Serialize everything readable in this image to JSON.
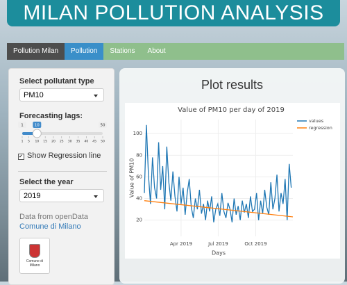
{
  "header": {
    "title": "MILAN POLLUTION ANALYSIS"
  },
  "nav": {
    "brand": "Pollution Milan",
    "items": [
      "Pollution",
      "Stations",
      "About"
    ],
    "active": 0
  },
  "sidebar": {
    "pollutant_label": "Select pollutant type",
    "pollutant": "PM10",
    "lags_label": "Forecasting lags:",
    "slider": {
      "min": 1,
      "max": 50,
      "value": 10,
      "ticks": [
        1,
        5,
        10,
        15,
        20,
        25,
        30,
        35,
        40,
        45,
        50
      ]
    },
    "checkbox": "Show Regression line",
    "year_label": "Select the year",
    "year": "2019",
    "source": "Data from openData",
    "link": "Comune di Milano",
    "logo_text": "Comune di Milano"
  },
  "panel": {
    "heading": "Plot results"
  },
  "chart_data": {
    "type": "line",
    "title": "Value of  PM10 per day of  2019",
    "xlabel": "Days",
    "ylabel": "Value of  PM10",
    "xlim": [
      1,
      365
    ],
    "ylim": [
      5,
      113
    ],
    "xticks": [
      {
        "value": 91,
        "label": "Apr 2019"
      },
      {
        "value": 182,
        "label": "Jul 2019"
      },
      {
        "value": 274,
        "label": "Oct 2019"
      }
    ],
    "yticks": [
      20,
      40,
      60,
      80,
      100
    ],
    "grid": true,
    "legend": "top-right",
    "series": [
      {
        "name": "values",
        "color": "#1f77b4",
        "x": [
          1,
          6,
          11,
          16,
          21,
          26,
          31,
          36,
          41,
          46,
          51,
          56,
          61,
          66,
          71,
          76,
          81,
          86,
          91,
          96,
          101,
          106,
          111,
          116,
          121,
          126,
          131,
          136,
          141,
          146,
          151,
          156,
          161,
          166,
          171,
          176,
          181,
          186,
          191,
          196,
          201,
          206,
          211,
          216,
          221,
          226,
          231,
          236,
          241,
          246,
          251,
          256,
          261,
          266,
          271,
          276,
          281,
          286,
          291,
          296,
          301,
          306,
          311,
          316,
          321,
          326,
          331,
          336,
          341,
          346,
          351,
          356,
          361
        ],
        "values": [
          45,
          108,
          62,
          35,
          78,
          50,
          40,
          92,
          48,
          70,
          30,
          88,
          55,
          38,
          65,
          42,
          28,
          60,
          35,
          50,
          25,
          45,
          58,
          32,
          22,
          40,
          30,
          48,
          26,
          35,
          20,
          38,
          28,
          42,
          18,
          30,
          35,
          24,
          45,
          28,
          22,
          36,
          30,
          18,
          40,
          25,
          33,
          20,
          38,
          27,
          35,
          22,
          42,
          28,
          30,
          45,
          20,
          38,
          26,
          48,
          32,
          25,
          55,
          30,
          40,
          62,
          28,
          45,
          35,
          58,
          20,
          72,
          50
        ]
      },
      {
        "name": "regression",
        "color": "#ff7f0e",
        "x": [
          1,
          365
        ],
        "values": [
          38,
          23
        ]
      }
    ]
  }
}
